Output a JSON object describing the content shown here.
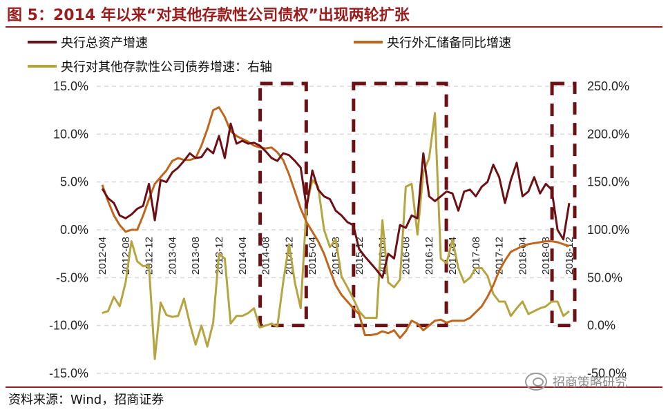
{
  "title": "图 5：2014 年以来“对其他存款性公司债权”出现两轮扩张",
  "source": "资料来源：Wind，招商证券",
  "watermark": "招商策略研究",
  "colors": {
    "brand": "#9b1c1c",
    "total_assets": "#6b1116",
    "fx_reserve": "#c0651c",
    "claims_other": "#b5a43f",
    "box": "#6b1116",
    "grid": "#d9d9d9"
  },
  "chart_data": {
    "type": "line",
    "legend": [
      {
        "key": "total_assets",
        "label": "央行总资产增速"
      },
      {
        "key": "fx_reserve",
        "label": "央行外汇储备同比增速"
      },
      {
        "key": "claims_other",
        "label": "央行对其他存款性公司债券增速：右轴"
      }
    ],
    "legend_position": "top",
    "grid": "horizontal",
    "y_left": {
      "min": -15,
      "max": 15,
      "ticks": [
        15,
        10,
        5,
        0,
        -5,
        -10,
        -15
      ],
      "tick_labels": [
        "15.0%",
        "10.0%",
        "5.0%",
        "0.0%",
        "-5.0%",
        "-10.0%",
        "-15.0%"
      ]
    },
    "y_right": {
      "min": -50,
      "max": 250,
      "ticks": [
        250,
        200,
        150,
        100,
        50,
        0,
        -50
      ],
      "tick_labels": [
        "250.0%",
        "200.0%",
        "150.0%",
        "100.0%",
        "50.0%",
        "0.0%",
        "-50.0%"
      ]
    },
    "x_tick_labels": [
      "2012-04",
      "2012-08",
      "2012-12",
      "2013-04",
      "2013-08",
      "2013-12",
      "2014-04",
      "2014-08",
      "2014-12",
      "2015-04",
      "2015-08",
      "2015-12",
      "2016-04",
      "2016-08",
      "2016-12",
      "2017-04",
      "2017-08",
      "2017-12",
      "2018-04",
      "2018-08",
      "2018-12"
    ],
    "x": [
      "2012-04",
      "2012-05",
      "2012-06",
      "2012-07",
      "2012-08",
      "2012-09",
      "2012-10",
      "2012-11",
      "2012-12",
      "2013-01",
      "2013-02",
      "2013-03",
      "2013-04",
      "2013-05",
      "2013-06",
      "2013-07",
      "2013-08",
      "2013-09",
      "2013-10",
      "2013-11",
      "2013-12",
      "2014-01",
      "2014-02",
      "2014-03",
      "2014-04",
      "2014-05",
      "2014-06",
      "2014-07",
      "2014-08",
      "2014-09",
      "2014-10",
      "2014-11",
      "2014-12",
      "2015-01",
      "2015-02",
      "2015-03",
      "2015-04",
      "2015-05",
      "2015-06",
      "2015-07",
      "2015-08",
      "2015-09",
      "2015-10",
      "2015-11",
      "2015-12",
      "2016-01",
      "2016-02",
      "2016-03",
      "2016-04",
      "2016-05",
      "2016-06",
      "2016-07",
      "2016-08",
      "2016-09",
      "2016-10",
      "2016-11",
      "2016-12",
      "2017-01",
      "2017-02",
      "2017-03",
      "2017-04",
      "2017-05",
      "2017-06",
      "2017-07",
      "2017-08",
      "2017-09",
      "2017-10",
      "2017-11",
      "2017-12",
      "2018-01",
      "2018-02",
      "2018-03",
      "2018-04",
      "2018-05",
      "2018-06",
      "2018-07",
      "2018-08",
      "2018-09",
      "2018-10",
      "2018-11",
      "2018-12"
    ],
    "series": [
      {
        "key": "total_assets",
        "name": "央行总资产增速",
        "axis": "left",
        "values": [
          4.3,
          3.3,
          2.8,
          1.5,
          1.2,
          1.6,
          2.2,
          2.5,
          4.8,
          1.0,
          5.2,
          5.0,
          6.0,
          6.5,
          7.2,
          8.0,
          7.5,
          7.6,
          8.5,
          8.0,
          9.8,
          7.5,
          11.1,
          9.0,
          9.3,
          9.0,
          9.1,
          8.8,
          8.2,
          7.5,
          7.2,
          8.0,
          7.8,
          7.2,
          6.5,
          2.3,
          6.2,
          4.2,
          3.5,
          3.2,
          2.0,
          1.5,
          0.8,
          0.5,
          -2.0,
          -2.8,
          -3.5,
          -4.2,
          -5.0,
          -2.5,
          -3.0,
          0.5,
          0.2,
          1.5,
          1.2,
          8.0,
          3.5,
          3.0,
          3.5,
          4.0,
          3.8,
          2.0,
          4.0,
          4.2,
          3.5,
          4.5,
          5.0,
          6.8,
          5.5,
          2.8,
          5.2,
          7.0,
          3.5,
          4.0,
          5.5,
          3.8,
          4.8,
          4.2,
          0.0,
          -1.0,
          2.8
        ]
      },
      {
        "key": "fx_reserve",
        "name": "央行外汇储备同比增速",
        "axis": "left",
        "values": [
          4.7,
          3.0,
          1.5,
          0.5,
          -0.2,
          0.0,
          0.0,
          1.5,
          3.2,
          4.8,
          5.5,
          6.2,
          7.2,
          7.5,
          7.3,
          7.3,
          7.5,
          8.8,
          10.5,
          12.5,
          12.8,
          11.8,
          10.3,
          9.8,
          9.5,
          9.2,
          8.8,
          8.6,
          8.5,
          8.6,
          8.1,
          7.3,
          5.8,
          4.0,
          2.2,
          0.8,
          -0.2,
          -1.2,
          -2.5,
          -4.2,
          -5.8,
          -6.8,
          -7.5,
          -8.2,
          -8.8,
          -11.0,
          -11.0,
          -10.9,
          -10.6,
          -10.8,
          -10.5,
          -11.3,
          -10.6,
          -9.5,
          -9.8,
          -10.5,
          -10.0,
          -9.5,
          -9.4,
          -9.7,
          -9.5,
          -9.5,
          -9.5,
          -9.2,
          -8.6,
          -8.0,
          -7.0,
          -5.8,
          -4.3,
          -3.2,
          -2.3,
          -2.0,
          -1.7,
          -1.5,
          -1.4,
          -1.3,
          -1.2,
          -1.2,
          -1.3,
          -1.5,
          -1.7
        ]
      },
      {
        "key": "claims_other",
        "name": "央行对其他存款性公司债券增速",
        "axis": "right",
        "values": [
          13,
          15,
          30,
          20,
          45,
          88,
          67,
          62,
          63,
          -35,
          24,
          11,
          9,
          10,
          28,
          2,
          -20,
          0,
          -22,
          3,
          75,
          70,
          2,
          10,
          10,
          13,
          18,
          -2,
          0,
          2,
          -1,
          45,
          85,
          45,
          18,
          125,
          152,
          145,
          100,
          82,
          90,
          51,
          40,
          28,
          15,
          8,
          8,
          8,
          110,
          45,
          40,
          48,
          145,
          148,
          95,
          160,
          175,
          222,
          70,
          65,
          90,
          60,
          45,
          50,
          60,
          60,
          52,
          33,
          25,
          25,
          10,
          18,
          25,
          12,
          15,
          18,
          20,
          25,
          25,
          10,
          15
        ]
      }
    ],
    "highlight_ranges": [
      [
        "2014-08",
        "2015-02"
      ],
      [
        "2015-12",
        "2017-02"
      ],
      [
        "2018-10",
        "2018-12"
      ]
    ]
  }
}
